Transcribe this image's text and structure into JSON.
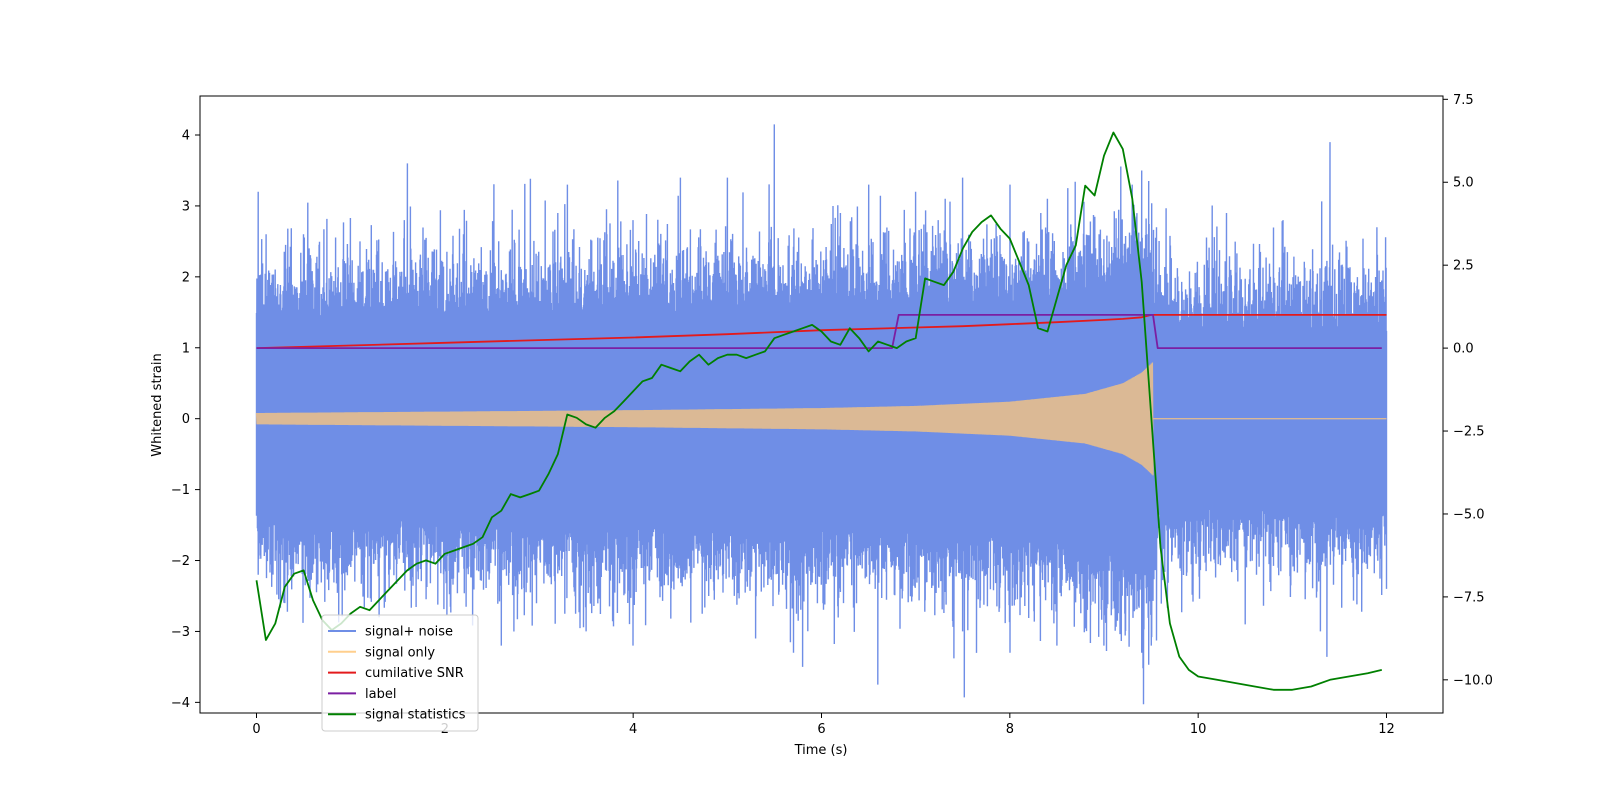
{
  "chart_data": {
    "type": "line",
    "title": "",
    "xlabel": "Time (s)",
    "ylabel": "Whitened strain",
    "y2label": "",
    "xlim": [
      -0.6,
      12.6
    ],
    "ylim": [
      -4.15,
      4.55
    ],
    "y2lim": [
      -11.0,
      7.6
    ],
    "x_ticks": [
      0,
      2,
      4,
      6,
      8,
      10,
      12
    ],
    "x_tick_labels": [
      "0",
      "2",
      "4",
      "6",
      "8",
      "10",
      "12"
    ],
    "y_ticks": [
      4,
      3,
      2,
      1,
      0,
      -1,
      -2,
      -3,
      -4
    ],
    "y_tick_labels": [
      "4",
      "3",
      "2",
      "1",
      "0",
      "−1",
      "−2",
      "−3",
      "−4"
    ],
    "y2_ticks": [
      7.5,
      5.0,
      2.5,
      0.0,
      -2.5,
      -5.0,
      -7.5,
      -10.0
    ],
    "y2_tick_labels": [
      "7.5",
      "5.0",
      "2.5",
      "0.0",
      "−2.5",
      "−5.0",
      "−7.5",
      "−10.0"
    ],
    "grid": false,
    "legend_position": "lower-left",
    "series": [
      {
        "name": "signal+ noise",
        "color": "#6f8ee6",
        "axis": "left",
        "kind": "noise",
        "x_range": [
          0,
          12
        ],
        "band_envelope": [
          [
            0,
            1.35
          ],
          [
            2,
            1.4
          ],
          [
            4,
            1.45
          ],
          [
            6,
            1.5
          ],
          [
            8,
            1.6
          ],
          [
            9,
            1.75
          ],
          [
            9.5,
            2.1
          ],
          [
            9.55,
            1.2
          ],
          [
            12,
            1.2
          ]
        ],
        "peaks": [
          [
            0.02,
            3.2
          ],
          [
            0.1,
            2.6
          ],
          [
            0.5,
            2.6
          ],
          [
            1.1,
            2.5
          ],
          [
            1.6,
            3.6
          ],
          [
            2.2,
            2.6
          ],
          [
            3.2,
            2.9
          ],
          [
            3.3,
            3.3
          ],
          [
            4.0,
            2.8
          ],
          [
            4.5,
            3.4
          ],
          [
            5.0,
            3.4
          ],
          [
            5.5,
            4.15
          ],
          [
            6.2,
            2.9
          ],
          [
            6.5,
            3.3
          ],
          [
            7.0,
            3.2
          ],
          [
            7.5,
            3.4
          ],
          [
            8.0,
            3.3
          ],
          [
            8.4,
            3.1
          ],
          [
            9.3,
            3.3
          ],
          [
            9.4,
            3.5
          ],
          [
            10.3,
            2.9
          ],
          [
            10.9,
            2.8
          ],
          [
            11.4,
            3.9
          ],
          [
            11.9,
            2.7
          ]
        ],
        "troughs": [
          [
            0.02,
            -2.2
          ],
          [
            0.3,
            -2.6
          ],
          [
            1.3,
            -2.8
          ],
          [
            2.6,
            -3.2
          ],
          [
            3.5,
            -3.0
          ],
          [
            4.0,
            -3.2
          ],
          [
            5.3,
            -3.1
          ],
          [
            5.7,
            -3.3
          ],
          [
            5.8,
            -3.5
          ],
          [
            6.6,
            -3.75
          ],
          [
            7.5,
            -3.0
          ],
          [
            8.0,
            -3.3
          ],
          [
            8.5,
            -3.2
          ],
          [
            9.0,
            -3.2
          ],
          [
            10.5,
            -2.9
          ],
          [
            11.3,
            -3.0
          ],
          [
            12.0,
            -2.4
          ]
        ]
      },
      {
        "name": "signal only",
        "color": "#ffc77a",
        "axis": "left",
        "kind": "chirp",
        "x_range": [
          0,
          9.52
        ],
        "amplitude_envelope": [
          [
            0,
            0.08
          ],
          [
            2,
            0.1
          ],
          [
            4,
            0.12
          ],
          [
            6,
            0.15
          ],
          [
            7,
            0.18
          ],
          [
            8,
            0.24
          ],
          [
            8.8,
            0.35
          ],
          [
            9.2,
            0.5
          ],
          [
            9.4,
            0.65
          ],
          [
            9.52,
            0.8
          ]
        ],
        "after": 0.0,
        "after_range": [
          9.52,
          12
        ]
      },
      {
        "name": "cumilative SNR",
        "color": "#e31a1c",
        "axis": "right",
        "kind": "line",
        "x": [
          0,
          1,
          2,
          3,
          4,
          5,
          6,
          7,
          7.5,
          8,
          8.5,
          9,
          9.2,
          9.4,
          9.5,
          9.52,
          12
        ],
        "y": [
          0.0,
          0.08,
          0.16,
          0.24,
          0.32,
          0.42,
          0.54,
          0.62,
          0.66,
          0.72,
          0.78,
          0.85,
          0.88,
          0.93,
          1.0,
          1.0,
          1.0
        ]
      },
      {
        "name": "label",
        "color": "#7b1fa2",
        "axis": "right",
        "kind": "line",
        "x": [
          0,
          6.75,
          6.82,
          9.52,
          9.57,
          11.95
        ],
        "y": [
          0.0,
          0.0,
          1.0,
          1.0,
          0.0,
          0.0
        ]
      },
      {
        "name": "signal statistics",
        "color": "#008000",
        "axis": "right",
        "kind": "line",
        "x": [
          0.0,
          0.1,
          0.2,
          0.3,
          0.4,
          0.5,
          0.6,
          0.7,
          0.8,
          0.9,
          1.0,
          1.1,
          1.2,
          1.3,
          1.4,
          1.5,
          1.6,
          1.7,
          1.8,
          1.9,
          2.0,
          2.1,
          2.2,
          2.3,
          2.4,
          2.5,
          2.6,
          2.7,
          2.8,
          2.9,
          3.0,
          3.1,
          3.2,
          3.3,
          3.4,
          3.5,
          3.6,
          3.7,
          3.8,
          3.9,
          4.0,
          4.1,
          4.2,
          4.3,
          4.4,
          4.5,
          4.6,
          4.7,
          4.8,
          4.9,
          5.0,
          5.1,
          5.2,
          5.3,
          5.4,
          5.5,
          5.6,
          5.7,
          5.8,
          5.9,
          6.0,
          6.1,
          6.2,
          6.3,
          6.4,
          6.5,
          6.6,
          6.7,
          6.8,
          6.9,
          7.0,
          7.1,
          7.2,
          7.3,
          7.4,
          7.5,
          7.6,
          7.7,
          7.8,
          7.9,
          8.0,
          8.1,
          8.2,
          8.3,
          8.4,
          8.5,
          8.6,
          8.7,
          8.8,
          8.9,
          9.0,
          9.1,
          9.2,
          9.3,
          9.4,
          9.5,
          9.6,
          9.7,
          9.8,
          9.9,
          10.0,
          10.2,
          10.4,
          10.6,
          10.8,
          11.0,
          11.2,
          11.4,
          11.6,
          11.8,
          11.95
        ],
        "y": [
          -7.0,
          -8.8,
          -8.3,
          -7.2,
          -6.8,
          -6.7,
          -7.6,
          -8.2,
          -8.5,
          -8.3,
          -8.0,
          -7.8,
          -7.9,
          -7.6,
          -7.3,
          -7.0,
          -6.7,
          -6.5,
          -6.4,
          -6.5,
          -6.2,
          -6.1,
          -6.0,
          -5.9,
          -5.7,
          -5.1,
          -4.9,
          -4.4,
          -4.5,
          -4.4,
          -4.3,
          -3.8,
          -3.2,
          -2.0,
          -2.1,
          -2.3,
          -2.4,
          -2.1,
          -1.9,
          -1.6,
          -1.3,
          -1.0,
          -0.9,
          -0.5,
          -0.6,
          -0.7,
          -0.4,
          -0.2,
          -0.5,
          -0.3,
          -0.2,
          -0.2,
          -0.3,
          -0.2,
          -0.1,
          0.3,
          0.4,
          0.5,
          0.6,
          0.7,
          0.5,
          0.2,
          0.1,
          0.6,
          0.3,
          -0.1,
          0.2,
          0.1,
          0.0,
          0.2,
          0.3,
          2.1,
          2.0,
          1.9,
          2.3,
          3.0,
          3.5,
          3.8,
          4.0,
          3.6,
          3.3,
          2.6,
          1.9,
          0.6,
          0.5,
          1.5,
          2.5,
          3.1,
          4.9,
          4.6,
          5.8,
          6.5,
          6.0,
          4.5,
          2.0,
          -2.0,
          -6.0,
          -8.3,
          -9.3,
          -9.7,
          -9.9,
          -10.0,
          -10.1,
          -10.2,
          -10.3,
          -10.3,
          -10.2,
          -10.0,
          -9.9,
          -9.8,
          -9.7
        ]
      }
    ]
  }
}
